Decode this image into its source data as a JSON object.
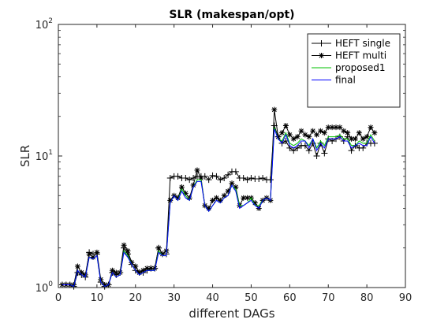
{
  "chart_data": {
    "type": "line",
    "title": "SLR (makespan/opt)",
    "xlabel": "different DAGs",
    "ylabel": "SLR",
    "xlim": [
      0,
      90
    ],
    "ylim": [
      1,
      100
    ],
    "yscale": "log",
    "x_ticks": [
      0,
      10,
      20,
      30,
      40,
      50,
      60,
      70,
      80,
      90
    ],
    "y_ticks": [
      {
        "value": 1,
        "base": "10",
        "exp": "0"
      },
      {
        "value": 10,
        "base": "10",
        "exp": "1"
      },
      {
        "value": 100,
        "base": "10",
        "exp": "2"
      }
    ],
    "legend_position": "top-right",
    "series": [
      {
        "name": "HEFT single",
        "color": "#000000",
        "marker": "plus",
        "values": [
          1.05,
          1.05,
          1.05,
          1.02,
          1.3,
          1.25,
          1.2,
          1.85,
          1.8,
          1.8,
          1.1,
          1.02,
          1.05,
          1.3,
          1.25,
          1.3,
          2.0,
          1.8,
          1.5,
          1.35,
          1.3,
          1.3,
          1.35,
          1.4,
          1.4,
          2.0,
          1.8,
          1.8,
          6.8,
          7.0,
          7.0,
          6.8,
          6.8,
          6.6,
          6.8,
          7.0,
          7.0,
          7.0,
          6.6,
          7.1,
          7.0,
          6.6,
          6.8,
          7.2,
          7.6,
          7.6,
          6.8,
          6.8,
          6.6,
          6.8,
          6.7,
          6.7,
          6.8,
          6.6,
          6.6,
          17.0,
          14.0,
          12.5,
          13.0,
          11.5,
          11.0,
          11.5,
          12.0,
          12.0,
          11.0,
          12.5,
          10.0,
          12.5,
          10.5,
          13.5,
          13.0,
          13.5,
          14.0,
          13.0,
          14.0,
          11.0,
          12.0,
          11.5,
          11.5,
          12.5,
          12.5,
          12.5
        ]
      },
      {
        "name": "HEFT multi",
        "color": "#000000",
        "marker": "star",
        "values": [
          1.05,
          1.05,
          1.05,
          1.05,
          1.45,
          1.3,
          1.25,
          1.8,
          1.7,
          1.85,
          1.15,
          1.05,
          1.05,
          1.35,
          1.3,
          1.3,
          2.1,
          1.9,
          1.55,
          1.45,
          1.3,
          1.35,
          1.4,
          1.4,
          1.4,
          2.0,
          1.8,
          1.9,
          4.6,
          5.0,
          4.8,
          5.8,
          5.2,
          4.8,
          6.0,
          7.8,
          6.8,
          4.2,
          4.0,
          4.6,
          4.8,
          4.6,
          5.0,
          5.4,
          6.2,
          5.8,
          4.2,
          4.8,
          4.8,
          4.8,
          4.4,
          4.0,
          4.6,
          4.8,
          4.6,
          22.5,
          14.0,
          15.0,
          17.0,
          14.5,
          13.5,
          14.0,
          15.5,
          14.5,
          14.0,
          15.5,
          14.5,
          15.5,
          15.0,
          16.5,
          16.5,
          16.5,
          16.5,
          15.5,
          15.0,
          13.5,
          13.5,
          15.0,
          13.5,
          14.0,
          16.5,
          15.0
        ]
      },
      {
        "name": "proposed1",
        "color": "#00c000",
        "marker": "none",
        "values": [
          1.05,
          1.05,
          1.05,
          1.02,
          1.35,
          1.25,
          1.2,
          1.7,
          1.65,
          1.75,
          1.1,
          1.02,
          1.05,
          1.3,
          1.2,
          1.25,
          1.9,
          1.75,
          1.5,
          1.35,
          1.25,
          1.3,
          1.35,
          1.35,
          1.35,
          1.9,
          1.75,
          1.75,
          4.4,
          5.0,
          4.6,
          5.6,
          5.0,
          4.6,
          5.8,
          6.6,
          6.6,
          4.2,
          3.8,
          4.2,
          4.6,
          4.4,
          4.8,
          5.0,
          6.0,
          5.6,
          4.2,
          4.2,
          4.4,
          4.8,
          4.2,
          4.2,
          4.6,
          4.8,
          4.6,
          16.5,
          13.5,
          13.0,
          15.0,
          12.5,
          12.0,
          12.5,
          13.5,
          13.0,
          12.0,
          13.5,
          11.5,
          13.0,
          12.0,
          14.0,
          14.0,
          14.0,
          14.5,
          13.5,
          13.5,
          12.0,
          12.0,
          13.0,
          12.5,
          12.5,
          14.5,
          13.0
        ]
      },
      {
        "name": "final",
        "color": "#0000ff",
        "marker": "none",
        "values": [
          1.05,
          1.05,
          1.05,
          1.02,
          1.35,
          1.25,
          1.2,
          1.7,
          1.65,
          1.75,
          1.1,
          1.02,
          1.05,
          1.3,
          1.2,
          1.25,
          1.85,
          1.7,
          1.5,
          1.35,
          1.25,
          1.3,
          1.35,
          1.35,
          1.35,
          1.85,
          1.75,
          1.75,
          4.4,
          5.0,
          4.6,
          5.4,
          4.8,
          4.6,
          5.8,
          6.4,
          6.4,
          4.2,
          3.8,
          4.2,
          4.6,
          4.4,
          4.8,
          5.0,
          6.0,
          5.4,
          4.0,
          4.2,
          4.4,
          4.6,
          4.2,
          4.0,
          4.6,
          4.8,
          4.6,
          16.0,
          13.5,
          12.5,
          14.5,
          12.0,
          11.5,
          12.0,
          13.0,
          13.0,
          11.5,
          13.5,
          11.0,
          12.5,
          11.5,
          13.5,
          13.5,
          13.5,
          14.0,
          13.0,
          13.0,
          11.5,
          12.0,
          12.5,
          12.0,
          12.0,
          14.0,
          12.5
        ]
      }
    ]
  }
}
